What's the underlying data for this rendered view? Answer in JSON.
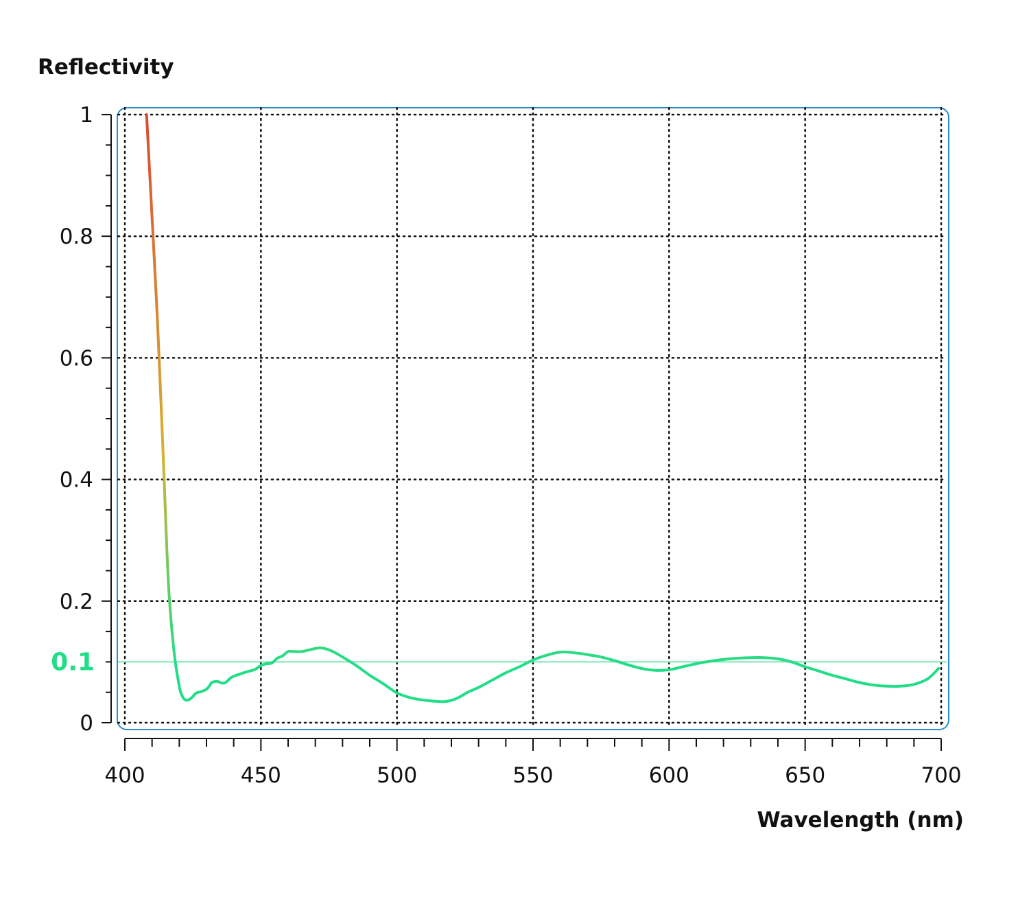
{
  "chart_data": {
    "type": "line",
    "ylabel": "Reflectivity",
    "xlabel": "Wavelength (nm)",
    "xlim": [
      400,
      700
    ],
    "ylim": [
      0,
      1
    ],
    "x_ticks": [
      400,
      450,
      500,
      550,
      600,
      650,
      700
    ],
    "x_tick_labels": [
      "400",
      "450",
      "500",
      "550",
      "600",
      "650",
      "700"
    ],
    "y_ticks": [
      0,
      0.2,
      0.4,
      0.6,
      0.8,
      1
    ],
    "y_tick_labels": [
      "0",
      "0.2",
      "0.4",
      "0.6",
      "0.8",
      "1"
    ],
    "x_minor_step": 10,
    "y_minor_step": 0.05,
    "grid": true,
    "grid_style": "dotted",
    "reference_line": {
      "value": 0.1,
      "label": "0.1",
      "color": "#22dd88"
    },
    "colors": {
      "high": "#d84a35",
      "mid": "#d8b030",
      "low": "#22dd88",
      "frame": "#2a8fc8",
      "reference_line": "#7ae8b4"
    },
    "series": [
      {
        "x": [
          408,
          410,
          412,
          414,
          416,
          418,
          420,
          421,
          422,
          423,
          424,
          425,
          426,
          427,
          428,
          430,
          431,
          432,
          434,
          435,
          436,
          437,
          439,
          441,
          443,
          445,
          446,
          448,
          450,
          452,
          454,
          456,
          458,
          460,
          462,
          465,
          468,
          472,
          476,
          480,
          485,
          490,
          495,
          500,
          505,
          510,
          515,
          518,
          522,
          526,
          530,
          535,
          540,
          545,
          550,
          555,
          560,
          565,
          570,
          575,
          580,
          585,
          590,
          595,
          600,
          605,
          610,
          615,
          620,
          625,
          630,
          635,
          640,
          645,
          650,
          655,
          660,
          665,
          670,
          675,
          680,
          685,
          690,
          695,
          699
        ],
        "y": [
          1.0,
          0.83,
          0.66,
          0.45,
          0.23,
          0.12,
          0.06,
          0.045,
          0.038,
          0.037,
          0.039,
          0.043,
          0.048,
          0.05,
          0.051,
          0.055,
          0.06,
          0.066,
          0.068,
          0.066,
          0.065,
          0.066,
          0.074,
          0.078,
          0.081,
          0.084,
          0.085,
          0.088,
          0.094,
          0.097,
          0.098,
          0.106,
          0.11,
          0.117,
          0.117,
          0.117,
          0.12,
          0.123,
          0.118,
          0.108,
          0.094,
          0.078,
          0.064,
          0.049,
          0.041,
          0.037,
          0.035,
          0.035,
          0.04,
          0.05,
          0.058,
          0.07,
          0.082,
          0.092,
          0.103,
          0.111,
          0.116,
          0.115,
          0.112,
          0.108,
          0.102,
          0.095,
          0.089,
          0.086,
          0.087,
          0.092,
          0.097,
          0.101,
          0.104,
          0.106,
          0.107,
          0.107,
          0.105,
          0.1,
          0.092,
          0.085,
          0.078,
          0.072,
          0.066,
          0.062,
          0.06,
          0.06,
          0.063,
          0.072,
          0.089
        ]
      }
    ]
  }
}
